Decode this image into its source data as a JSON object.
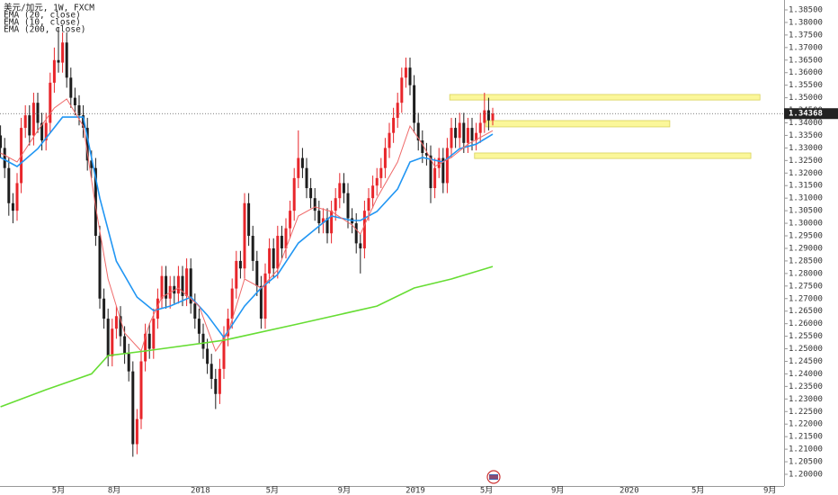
{
  "chart_data": {
    "type": "candlestick",
    "title": "美元/加元, 1W, FXCM",
    "up_color": "#e8262b",
    "down_color": "#1e1e1e",
    "open": [
      1.335,
      1.33,
      1.322,
      1.308,
      1.305,
      1.316,
      1.338,
      1.343,
      1.335,
      1.348,
      1.34,
      1.333,
      1.34,
      1.356,
      1.365,
      1.364,
      1.372,
      1.358,
      1.35,
      1.347,
      1.343,
      1.338,
      1.325,
      1.322,
      1.295,
      1.27,
      1.262,
      1.247,
      1.258,
      1.263,
      1.255,
      1.248,
      1.241,
      1.212,
      1.222,
      1.245,
      1.256,
      1.25,
      1.262,
      1.27,
      1.279,
      1.27,
      1.275,
      1.272,
      1.279,
      1.271,
      1.282,
      1.268,
      1.262,
      1.256,
      1.25,
      1.244,
      1.238,
      1.232,
      1.242,
      1.255,
      1.262,
      1.274,
      1.285,
      1.282,
      1.308,
      1.295,
      1.285,
      1.275,
      1.262,
      1.28,
      1.29,
      1.282,
      1.295,
      1.29,
      1.298,
      1.305,
      1.318,
      1.326,
      1.322,
      1.314,
      1.31,
      1.305,
      1.3,
      1.302,
      1.296,
      1.305,
      1.31,
      1.316,
      1.312,
      1.302,
      1.3,
      1.292,
      1.29,
      1.305,
      1.31,
      1.315,
      1.318,
      1.322,
      1.33,
      1.336,
      1.342,
      1.348,
      1.358,
      1.362,
      1.355,
      1.34,
      1.333,
      1.328,
      1.327,
      1.314,
      1.322,
      1.326,
      1.316,
      1.33,
      1.338,
      1.334,
      1.34,
      1.332,
      1.338,
      1.333,
      1.336,
      1.34,
      1.345,
      1.341
    ],
    "high": [
      1.339,
      1.334,
      1.326,
      1.312,
      1.32,
      1.342,
      1.347,
      1.347,
      1.352,
      1.352,
      1.344,
      1.344,
      1.36,
      1.37,
      1.378,
      1.376,
      1.376,
      1.362,
      1.354,
      1.351,
      1.347,
      1.342,
      1.329,
      1.326,
      1.299,
      1.274,
      1.266,
      1.262,
      1.267,
      1.267,
      1.259,
      1.252,
      1.245,
      1.226,
      1.249,
      1.26,
      1.26,
      1.266,
      1.274,
      1.283,
      1.283,
      1.279,
      1.279,
      1.283,
      1.283,
      1.286,
      1.286,
      1.272,
      1.266,
      1.26,
      1.254,
      1.248,
      1.242,
      1.246,
      1.259,
      1.266,
      1.278,
      1.289,
      1.289,
      1.312,
      1.312,
      1.299,
      1.289,
      1.279,
      1.284,
      1.294,
      1.294,
      1.299,
      1.299,
      1.302,
      1.309,
      1.322,
      1.337,
      1.33,
      1.326,
      1.318,
      1.314,
      1.309,
      1.306,
      1.306,
      1.309,
      1.314,
      1.32,
      1.32,
      1.316,
      1.306,
      1.304,
      1.296,
      1.309,
      1.314,
      1.319,
      1.322,
      1.326,
      1.334,
      1.34,
      1.346,
      1.352,
      1.362,
      1.366,
      1.366,
      1.359,
      1.344,
      1.337,
      1.332,
      1.331,
      1.326,
      1.33,
      1.33,
      1.334,
      1.342,
      1.342,
      1.344,
      1.344,
      1.342,
      1.342,
      1.34,
      1.344,
      1.352,
      1.35,
      1.346
    ],
    "low": [
      1.326,
      1.318,
      1.303,
      1.3,
      1.301,
      1.312,
      1.334,
      1.331,
      1.331,
      1.336,
      1.329,
      1.329,
      1.336,
      1.352,
      1.36,
      1.36,
      1.354,
      1.346,
      1.343,
      1.339,
      1.334,
      1.321,
      1.318,
      1.291,
      1.266,
      1.258,
      1.243,
      1.243,
      1.254,
      1.251,
      1.244,
      1.237,
      1.207,
      1.208,
      1.218,
      1.241,
      1.246,
      1.246,
      1.258,
      1.266,
      1.266,
      1.266,
      1.268,
      1.268,
      1.267,
      1.267,
      1.264,
      1.258,
      1.252,
      1.246,
      1.24,
      1.234,
      1.226,
      1.228,
      1.238,
      1.251,
      1.258,
      1.27,
      1.278,
      1.278,
      1.291,
      1.281,
      1.271,
      1.258,
      1.258,
      1.276,
      1.278,
      1.278,
      1.286,
      1.286,
      1.294,
      1.301,
      1.314,
      1.318,
      1.31,
      1.306,
      1.301,
      1.296,
      1.296,
      1.292,
      1.292,
      1.301,
      1.306,
      1.308,
      1.298,
      1.296,
      1.288,
      1.28,
      1.286,
      1.301,
      1.306,
      1.311,
      1.314,
      1.318,
      1.326,
      1.332,
      1.338,
      1.344,
      1.354,
      1.351,
      1.336,
      1.329,
      1.324,
      1.323,
      1.308,
      1.31,
      1.318,
      1.312,
      1.312,
      1.326,
      1.33,
      1.33,
      1.328,
      1.328,
      1.329,
      1.329,
      1.332,
      1.336,
      1.337,
      1.339
    ],
    "close": [
      1.33,
      1.322,
      1.308,
      1.305,
      1.316,
      1.338,
      1.343,
      1.335,
      1.348,
      1.34,
      1.333,
      1.34,
      1.356,
      1.365,
      1.364,
      1.372,
      1.358,
      1.35,
      1.347,
      1.343,
      1.338,
      1.325,
      1.322,
      1.295,
      1.27,
      1.262,
      1.247,
      1.258,
      1.263,
      1.255,
      1.248,
      1.241,
      1.212,
      1.222,
      1.245,
      1.256,
      1.25,
      1.262,
      1.27,
      1.279,
      1.27,
      1.275,
      1.272,
      1.279,
      1.271,
      1.282,
      1.268,
      1.262,
      1.256,
      1.25,
      1.244,
      1.238,
      1.232,
      1.242,
      1.255,
      1.262,
      1.274,
      1.285,
      1.282,
      1.308,
      1.295,
      1.285,
      1.275,
      1.262,
      1.28,
      1.29,
      1.282,
      1.295,
      1.29,
      1.298,
      1.305,
      1.318,
      1.326,
      1.322,
      1.314,
      1.31,
      1.305,
      1.3,
      1.302,
      1.296,
      1.305,
      1.31,
      1.316,
      1.312,
      1.302,
      1.3,
      1.292,
      1.29,
      1.305,
      1.31,
      1.315,
      1.318,
      1.322,
      1.33,
      1.336,
      1.342,
      1.348,
      1.358,
      1.362,
      1.355,
      1.34,
      1.333,
      1.328,
      1.327,
      1.314,
      1.322,
      1.326,
      1.316,
      1.33,
      1.338,
      1.334,
      1.34,
      1.332,
      1.338,
      1.333,
      1.336,
      1.34,
      1.345,
      1.341,
      1.3437
    ],
    "lines": [
      {
        "name": "EMA (20, close)",
        "color": "#2196f3",
        "width": 1.6,
        "x": [
          0,
          4,
          9,
          15,
          20,
          24,
          28,
          33,
          37,
          41,
          46,
          50,
          54,
          59,
          63,
          67,
          72,
          76,
          80,
          85,
          87,
          91,
          96,
          99,
          102,
          107,
          111,
          115,
          119
        ],
        "values": [
          1.3262,
          1.3226,
          1.3297,
          1.3423,
          1.3423,
          1.31,
          1.2849,
          1.2706,
          1.2652,
          1.267,
          1.2706,
          1.2634,
          1.2545,
          1.267,
          1.2742,
          1.2796,
          1.2921,
          1.2975,
          1.3029,
          1.3011,
          1.3011,
          1.3047,
          1.3136,
          1.3244,
          1.3262,
          1.3244,
          1.3297,
          1.3315,
          1.3355
        ]
      },
      {
        "name": "EMA (10, close)",
        "color": "#ef6a6a",
        "width": 1,
        "x": [
          0,
          4,
          9,
          13,
          16,
          20,
          23,
          26,
          30,
          34,
          36,
          39,
          43,
          48,
          52,
          55,
          59,
          63,
          67,
          72,
          76,
          80,
          85,
          87,
          91,
          96,
          99,
          102,
          105,
          109,
          113,
          119
        ],
        "values": [
          1.328,
          1.3244,
          1.3369,
          1.3459,
          1.3495,
          1.3387,
          1.3065,
          1.2778,
          1.2563,
          1.2491,
          1.2599,
          1.2706,
          1.2742,
          1.267,
          1.2491,
          1.2563,
          1.2778,
          1.2742,
          1.2814,
          1.3029,
          1.3065,
          1.3047,
          1.2993,
          1.2957,
          1.31,
          1.3244,
          1.3387,
          1.3315,
          1.3226,
          1.3262,
          1.3315,
          1.3369
        ]
      },
      {
        "name": "EMA (200, close)",
        "color": "#66dd33",
        "width": 1.6,
        "x": [
          0,
          11,
          22,
          26,
          35,
          54,
          72,
          91,
          100,
          109,
          119
        ],
        "values": [
          1.2269,
          1.2337,
          1.24,
          1.2473,
          1.2491,
          1.2534,
          1.2599,
          1.267,
          1.2742,
          1.2778,
          1.2828
        ]
      }
    ],
    "zones": [
      {
        "color": "#fbf79a",
        "start": 108.6,
        "end": 183.6,
        "top": 1.3513,
        "bottom": 1.3491
      },
      {
        "color": "#fbf79a",
        "start": 117.3,
        "end": 161.8,
        "top": 1.3409,
        "bottom": 1.3384
      },
      {
        "color": "#fbf79a",
        "start": 114.6,
        "end": 181.4,
        "top": 1.328,
        "bottom": 1.3258
      }
    ],
    "last_price": {
      "value": 1.34368,
      "label": "1.34368"
    },
    "xlim": [
      -0.13,
      189.43
    ],
    "ylim": [
      1.19534,
      1.38894
    ],
    "xticks": [
      {
        "value": 14,
        "label": "5月"
      },
      {
        "value": 27.5,
        "label": "8月"
      },
      {
        "value": 48.3,
        "label": "2018"
      },
      {
        "value": 65.7,
        "label": "5月"
      },
      {
        "value": 83.1,
        "label": "9月"
      },
      {
        "value": 100.3,
        "label": "2019"
      },
      {
        "value": 117.5,
        "label": "5月"
      },
      {
        "value": 134.7,
        "label": "9月"
      },
      {
        "value": 152,
        "label": "2020"
      },
      {
        "value": 168.6,
        "label": "5月"
      },
      {
        "value": 186,
        "label": "9月"
      }
    ],
    "yticks": [
      {
        "value": 1.2,
        "label": "1.20000"
      },
      {
        "value": 1.205,
        "label": "1.20500"
      },
      {
        "value": 1.21,
        "label": "1.21000"
      },
      {
        "value": 1.215,
        "label": "1.21500"
      },
      {
        "value": 1.22,
        "label": "1.22000"
      },
      {
        "value": 1.225,
        "label": "1.22500"
      },
      {
        "value": 1.23,
        "label": "1.23000"
      },
      {
        "value": 1.235,
        "label": "1.23500"
      },
      {
        "value": 1.24,
        "label": "1.24000"
      },
      {
        "value": 1.245,
        "label": "1.24500"
      },
      {
        "value": 1.25,
        "label": "1.25000"
      },
      {
        "value": 1.255,
        "label": "1.25500"
      },
      {
        "value": 1.26,
        "label": "1.26000"
      },
      {
        "value": 1.265,
        "label": "1.26500"
      },
      {
        "value": 1.27,
        "label": "1.27000"
      },
      {
        "value": 1.275,
        "label": "1.27500"
      },
      {
        "value": 1.28,
        "label": "1.28000"
      },
      {
        "value": 1.285,
        "label": "1.28500"
      },
      {
        "value": 1.29,
        "label": "1.29000"
      },
      {
        "value": 1.295,
        "label": "1.29500"
      },
      {
        "value": 1.3,
        "label": "1.30000"
      },
      {
        "value": 1.305,
        "label": "1.30500"
      },
      {
        "value": 1.31,
        "label": "1.31000"
      },
      {
        "value": 1.315,
        "label": "1.31500"
      },
      {
        "value": 1.32,
        "label": "1.32000"
      },
      {
        "value": 1.325,
        "label": "1.32500"
      },
      {
        "value": 1.33,
        "label": "1.33000"
      },
      {
        "value": 1.335,
        "label": "1.33500"
      },
      {
        "value": 1.34,
        "label": "1.34000"
      },
      {
        "value": 1.345,
        "label": "1.34500"
      },
      {
        "value": 1.35,
        "label": "1.35000"
      },
      {
        "value": 1.355,
        "label": "1.35500"
      },
      {
        "value": 1.36,
        "label": "1.36000"
      },
      {
        "value": 1.365,
        "label": "1.36500"
      },
      {
        "value": 1.37,
        "label": "1.37000"
      },
      {
        "value": 1.375,
        "label": "1.37500"
      },
      {
        "value": 1.38,
        "label": "1.38000"
      },
      {
        "value": 1.385,
        "label": "1.38500"
      }
    ]
  }
}
